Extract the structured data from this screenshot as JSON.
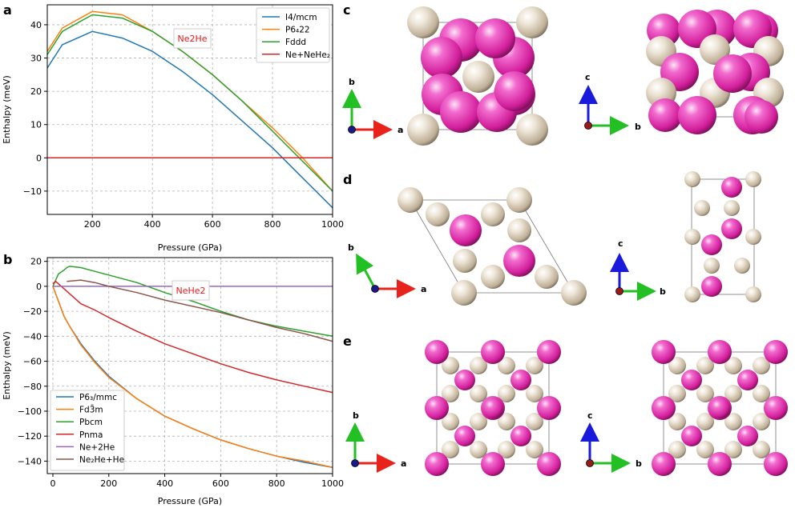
{
  "colors": {
    "blue": "#1f77b4",
    "orange": "#ff7f0e",
    "green": "#2ca02c",
    "red": "#d62728",
    "purple": "#9467bd",
    "brown": "#8c564b",
    "ne_atom": "#e83cb4",
    "he_atom": "#e2d6c4",
    "annotation": "#e41a1c"
  },
  "chart_data": [
    {
      "panel": "a",
      "type": "line",
      "annotation": "Ne2He",
      "xlabel": "Pressure (GPa)",
      "ylabel": "Enthalpy (meV)",
      "xlim": [
        50,
        1000
      ],
      "ylim": [
        -17,
        46
      ],
      "xticks": [
        200,
        400,
        600,
        800,
        1000
      ],
      "yticks": [
        -10,
        0,
        10,
        20,
        30,
        40
      ],
      "legend_position": "top-right",
      "series": [
        {
          "name": "I4/mcm",
          "color": "#1f77b4",
          "x": [
            50,
            100,
            200,
            300,
            400,
            500,
            600,
            700,
            800,
            900,
            1000
          ],
          "y": [
            27,
            34,
            38,
            36,
            32,
            26,
            19,
            11,
            3,
            -6,
            -15
          ]
        },
        {
          "name": "P6₄22",
          "color": "#ff7f0e",
          "x": [
            50,
            100,
            200,
            300,
            400,
            500,
            600,
            700,
            800,
            900,
            1000
          ],
          "y": [
            32,
            39,
            44,
            43,
            38,
            32,
            25,
            17,
            9,
            0,
            -10
          ]
        },
        {
          "name": "Fddd",
          "color": "#2ca02c",
          "x": [
            50,
            100,
            200,
            300,
            400,
            500,
            600,
            700,
            800,
            900,
            1000
          ],
          "y": [
            31,
            38,
            43,
            42,
            38,
            32,
            25,
            17,
            8,
            -1,
            -10
          ]
        },
        {
          "name": "Ne+NeHe₂",
          "color": "#d62728",
          "x": [
            50,
            1000
          ],
          "y": [
            0,
            0
          ]
        }
      ]
    },
    {
      "panel": "b",
      "type": "line",
      "annotation": "NeHe2",
      "xlabel": "Pressure (GPa)",
      "ylabel": "Enthalpy (meV)",
      "xlim": [
        -20,
        1000
      ],
      "ylim": [
        -150,
        23
      ],
      "xticks": [
        0,
        200,
        400,
        600,
        800,
        1000
      ],
      "yticks": [
        -140,
        -120,
        -100,
        -80,
        -60,
        -40,
        -20,
        0,
        20
      ],
      "legend_position": "bottom-left",
      "series": [
        {
          "name": "P6₃/mmc",
          "color": "#1f77b4",
          "x": [
            0,
            10,
            20,
            40,
            60,
            100,
            150,
            200,
            300,
            400,
            500,
            600,
            700,
            800,
            900,
            1000
          ],
          "y": [
            0,
            -6,
            -12,
            -24,
            -32,
            -46,
            -60,
            -72,
            -90,
            -104,
            -114,
            -123,
            -130,
            -136,
            -141,
            -145
          ]
        },
        {
          "name": "Fd3̄m",
          "color": "#ff7f0e",
          "x": [
            0,
            10,
            20,
            40,
            60,
            100,
            150,
            200,
            300,
            400,
            500,
            600,
            700,
            800,
            900,
            1000
          ],
          "y": [
            0,
            -6,
            -12,
            -24,
            -32,
            -47,
            -61,
            -73,
            -90,
            -104,
            -114,
            -123,
            -130,
            -136,
            -140,
            -145
          ]
        },
        {
          "name": "Pbcm",
          "color": "#2ca02c",
          "x": [
            0,
            10,
            20,
            40,
            50,
            60,
            100,
            150,
            200,
            300,
            400,
            500,
            600,
            700,
            800,
            900,
            1000
          ],
          "y": [
            0,
            5,
            10,
            13,
            15,
            16,
            15,
            12,
            9,
            3,
            -5,
            -12,
            -20,
            -27,
            -32,
            -36,
            -40
          ]
        },
        {
          "name": "Pnma",
          "color": "#d62728",
          "x": [
            0,
            10,
            20,
            50,
            100,
            150,
            200,
            300,
            400,
            500,
            600,
            700,
            800,
            900,
            1000
          ],
          "y": [
            2,
            4,
            2,
            -4,
            -14,
            -19,
            -25,
            -36,
            -46,
            -54,
            -62,
            -69,
            -75,
            -80,
            -85
          ]
        },
        {
          "name": "Ne+2He",
          "color": "#9467bd",
          "x": [
            0,
            1000
          ],
          "y": [
            0,
            0
          ]
        },
        {
          "name": "Ne₂He+He",
          "color": "#8c564b",
          "x": [
            50,
            100,
            150,
            200,
            300,
            400,
            500,
            600,
            700,
            800,
            900,
            1000
          ],
          "y": [
            4,
            5,
            3,
            0,
            -5,
            -11,
            -16,
            -21,
            -27,
            -33,
            -38,
            -44
          ]
        }
      ]
    }
  ],
  "structures": {
    "panel_labels": [
      "c",
      "d",
      "e"
    ],
    "axis_labels": {
      "a": "a",
      "b": "b",
      "c": "c"
    }
  }
}
